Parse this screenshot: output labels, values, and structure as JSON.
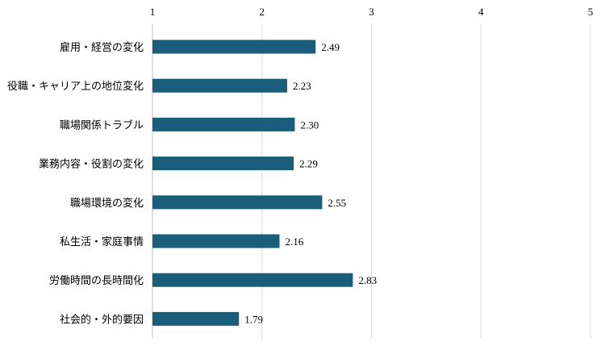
{
  "chart_data": {
    "type": "bar",
    "orientation": "horizontal",
    "categories": [
      "雇用・経営の変化",
      "役職・キャリア上の地位変化",
      "職場関係トラブル",
      "業務内容・役割の変化",
      "職場環境の変化",
      "私生活・家庭事情",
      "労働時間の長時間化",
      "社会的・外的要因"
    ],
    "values": [
      2.49,
      2.23,
      2.3,
      2.29,
      2.55,
      2.16,
      2.83,
      1.79
    ],
    "value_labels": [
      "2.49",
      "2.23",
      "2.30",
      "2.29",
      "2.55",
      "2.16",
      "2.83",
      "1.79"
    ],
    "xlim": [
      1,
      5
    ],
    "x_ticks": [
      "1",
      "2",
      "3",
      "4",
      "5"
    ],
    "x_tick_values": [
      1,
      2,
      3,
      4,
      5
    ],
    "x_axis_position": "top",
    "grid": true,
    "legend": "none",
    "bar_color": "#1b5e7b"
  }
}
